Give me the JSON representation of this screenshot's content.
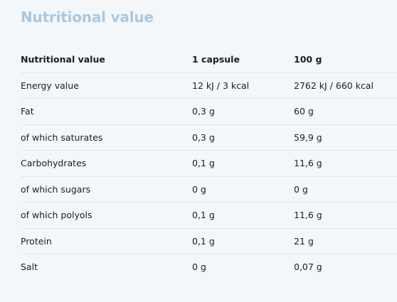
{
  "title": "Nutritional value",
  "table": {
    "headers": [
      "Nutritional value",
      "1 capsule",
      "100 g"
    ],
    "rows": [
      [
        "Energy value",
        "12 kJ / 3 kcal",
        "2762 kJ / 660 kcal"
      ],
      [
        "Fat",
        "0,3 g",
        "60 g"
      ],
      [
        "of which saturates",
        "0,3 g",
        "59,9 g"
      ],
      [
        "Carbohydrates",
        "0,1 g",
        "11,6 g"
      ],
      [
        "of which sugars",
        "0 g",
        "0 g"
      ],
      [
        "of which polyols",
        "0,1 g",
        "11,6 g"
      ],
      [
        "Protein",
        "0,1 g",
        "21 g"
      ],
      [
        "Salt",
        "0 g",
        "0,07 g"
      ]
    ]
  }
}
